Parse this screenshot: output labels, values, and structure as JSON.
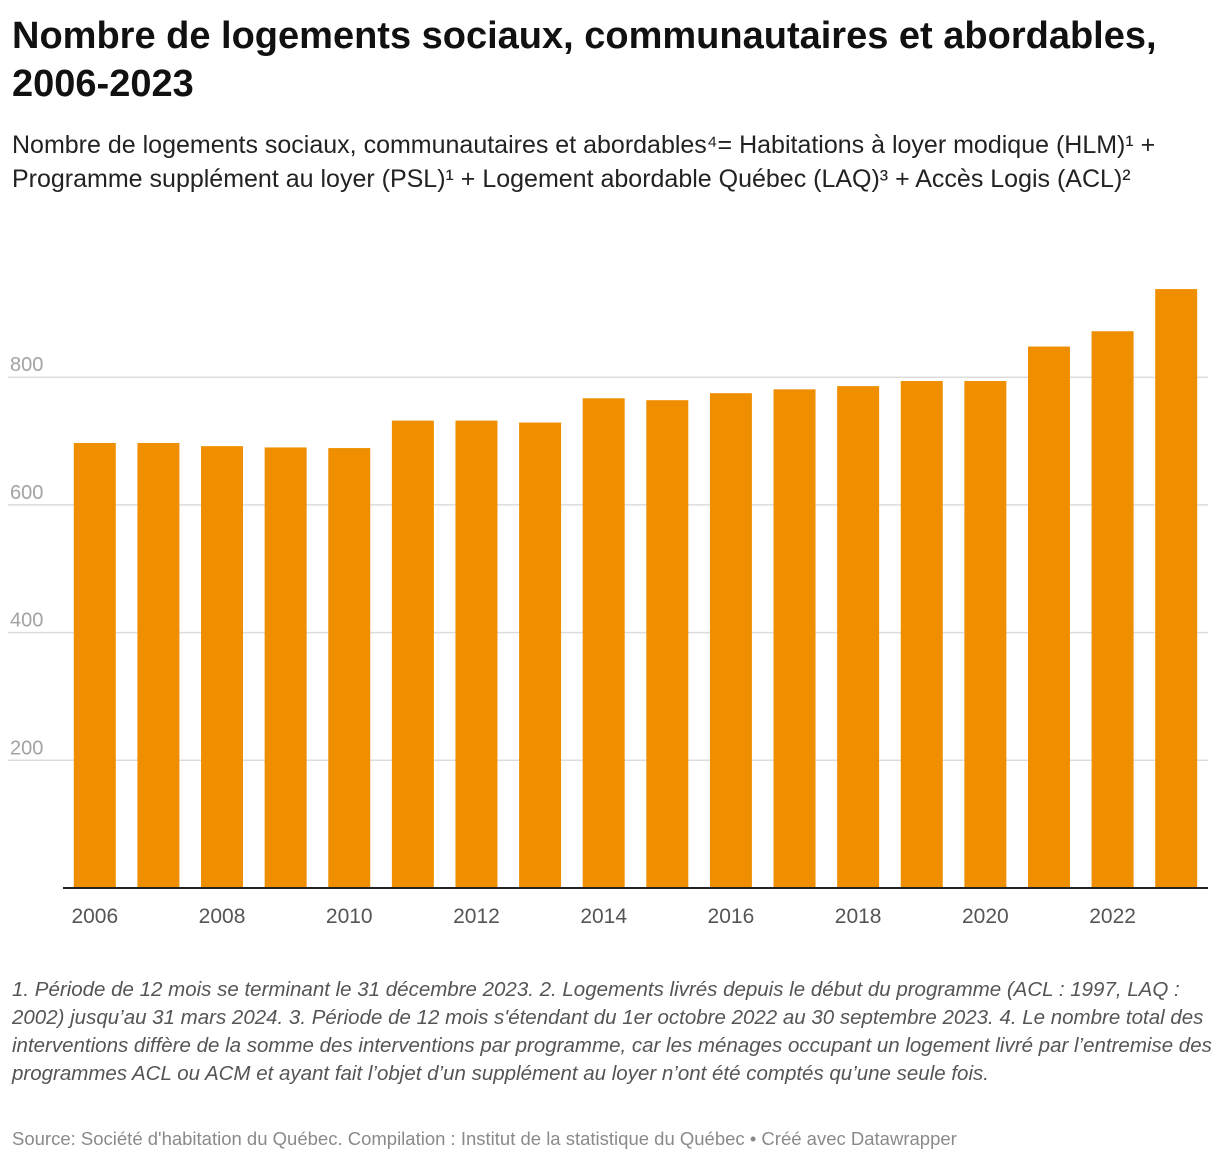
{
  "header": {
    "title": "Nombre de logements sociaux, communautaires et abordables, 2006-2023",
    "subtitle": "Nombre de logements sociaux, communautaires et abordables⁴= Habitations à loyer modique (HLM)¹ + Programme supplément au loyer (PSL)¹ + Logement abordable Québec (LAQ)³ + Accès Logis (ACL)²"
  },
  "footer": {
    "notes": "1. Période de 12 mois se terminant le 31 décembre 2023. 2. Logements livrés depuis le début du programme (ACL : 1997, LAQ : 2002) jusqu’au 31 mars 2024. 3. Période de 12 mois s'étendant du 1er octobre 2022 au 30 septembre 2023. 4. Le nombre total des interventions diffère de la somme des interventions par programme, car les ménages occupant un logement livré par l’entremise des programmes ACL ou ACM et ayant fait l’objet d’un supplément au loyer n’ont été comptés qu’une seule fois.",
    "source": "Source: Société d'habitation du Québec. Compilation : Institut de la statistique du Québec • Créé avec Datawrapper"
  },
  "chart_data": {
    "type": "bar",
    "categories": [
      "2006",
      "2007",
      "2008",
      "2009",
      "2010",
      "2011",
      "2012",
      "2013",
      "2014",
      "2015",
      "2016",
      "2017",
      "2018",
      "2019",
      "2020",
      "2021",
      "2022",
      "2023"
    ],
    "values": [
      697,
      697,
      692,
      690,
      689,
      732,
      732,
      729,
      767,
      764,
      775,
      781,
      786,
      794,
      794,
      848,
      872,
      938
    ],
    "x_tick_labels": [
      "2006",
      "2008",
      "2010",
      "2012",
      "2014",
      "2016",
      "2018",
      "2020",
      "2022"
    ],
    "y_ticks": [
      200,
      400,
      600,
      800
    ],
    "ylim": [
      0,
      960
    ],
    "bar_color": "#ef8f00",
    "grid": true,
    "xlabel": "",
    "ylabel": ""
  }
}
